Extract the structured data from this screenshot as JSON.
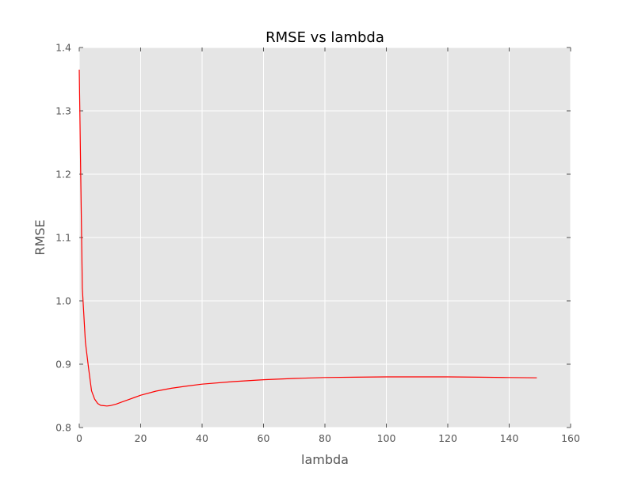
{
  "chart_data": {
    "type": "line",
    "title": "RMSE vs lambda",
    "xlabel": "lambda",
    "ylabel": "RMSE",
    "xlim": [
      0,
      160
    ],
    "ylim": [
      0.8,
      1.4
    ],
    "xticks": [
      0,
      20,
      40,
      60,
      80,
      100,
      120,
      140,
      160
    ],
    "yticks": [
      0.8,
      0.9,
      1.0,
      1.1,
      1.2,
      1.3,
      1.4
    ],
    "grid": true,
    "legend": "none",
    "series": [
      {
        "color": "#ff0000",
        "x": [
          0,
          1,
          2,
          3,
          4,
          5,
          6,
          7,
          8,
          9,
          10,
          12,
          14,
          16,
          18,
          20,
          25,
          30,
          35,
          40,
          50,
          60,
          70,
          80,
          90,
          100,
          110,
          120,
          130,
          140,
          149
        ],
        "y": [
          1.365,
          1.02,
          0.935,
          0.895,
          0.858,
          0.845,
          0.838,
          0.835,
          0.8345,
          0.834,
          0.8345,
          0.837,
          0.8405,
          0.844,
          0.8475,
          0.851,
          0.8575,
          0.862,
          0.8655,
          0.8685,
          0.8725,
          0.8755,
          0.8775,
          0.879,
          0.8795,
          0.88,
          0.88,
          0.88,
          0.8795,
          0.879,
          0.8785
        ]
      }
    ]
  }
}
